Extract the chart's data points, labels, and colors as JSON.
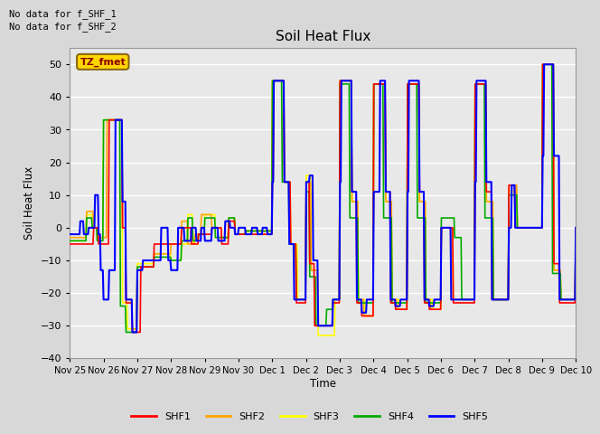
{
  "title": "Soil Heat Flux",
  "ylabel": "Soil Heat Flux",
  "xlabel": "Time",
  "ylim": [
    -40,
    55
  ],
  "yticks": [
    -40,
    -30,
    -20,
    -10,
    0,
    10,
    20,
    30,
    40,
    50
  ],
  "no_data_text": [
    "No data for f_SHF_1",
    "No data for f_SHF_2"
  ],
  "legend_box_text": "TZ_fmet",
  "legend_box_color": "#FFD700",
  "legend_box_border": "#8B6914",
  "colors": {
    "SHF1": "#FF0000",
    "SHF2": "#FFA500",
    "SHF3": "#FFFF00",
    "SHF4": "#00AA00",
    "SHF5": "#0000FF"
  },
  "bg_color": "#D8D8D8",
  "plot_bg_color": "#E8E8E8",
  "grid_color": "#FFFFFF",
  "x_tick_labels": [
    "Nov 25",
    "Nov 26",
    "Nov 27",
    "Nov 28",
    "Nov 29",
    "Nov 30",
    "Dec 1",
    "Dec 2",
    "Dec 3",
    "Dec 4",
    "Dec 5",
    "Dec 6",
    "Dec 7",
    "Dec 8",
    "Dec 9",
    "Dec 10"
  ]
}
